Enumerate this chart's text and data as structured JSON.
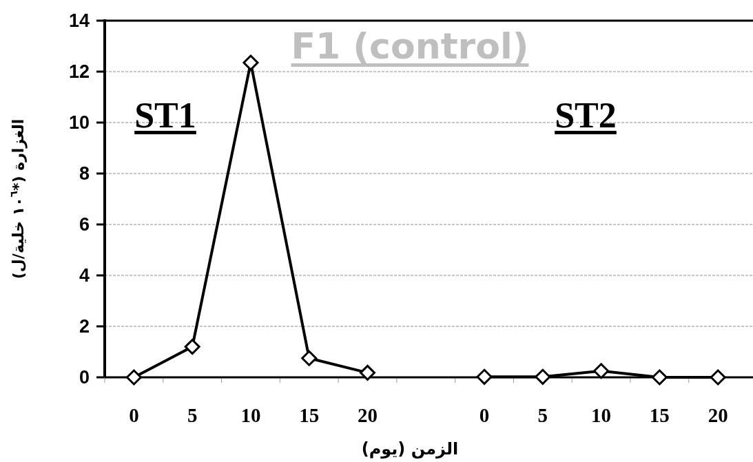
{
  "chart_data": {
    "type": "line",
    "title": "F1 (control)",
    "xlabel": "الزمن (يوم)",
    "ylabel": "الغزارة (*١٠$^{٦}$ خلية/ل)",
    "categories": [
      "0",
      "5",
      "10",
      "15",
      "20",
      null,
      "0",
      "5",
      "10",
      "15",
      "20"
    ],
    "series": [
      {
        "color": "#000000",
        "values": [
          0,
          1.2,
          12.35,
          0.75,
          0.18,
          null,
          0.02,
          0.02,
          0.25,
          0,
          0
        ]
      }
    ],
    "annotations": [
      "ST1",
      "ST2"
    ],
    "ylim": [
      0,
      14
    ],
    "yticks": [
      0,
      2,
      4,
      6,
      8,
      10,
      12,
      14
    ],
    "grid": "y",
    "marker": "diamond",
    "line_style": "solid"
  }
}
